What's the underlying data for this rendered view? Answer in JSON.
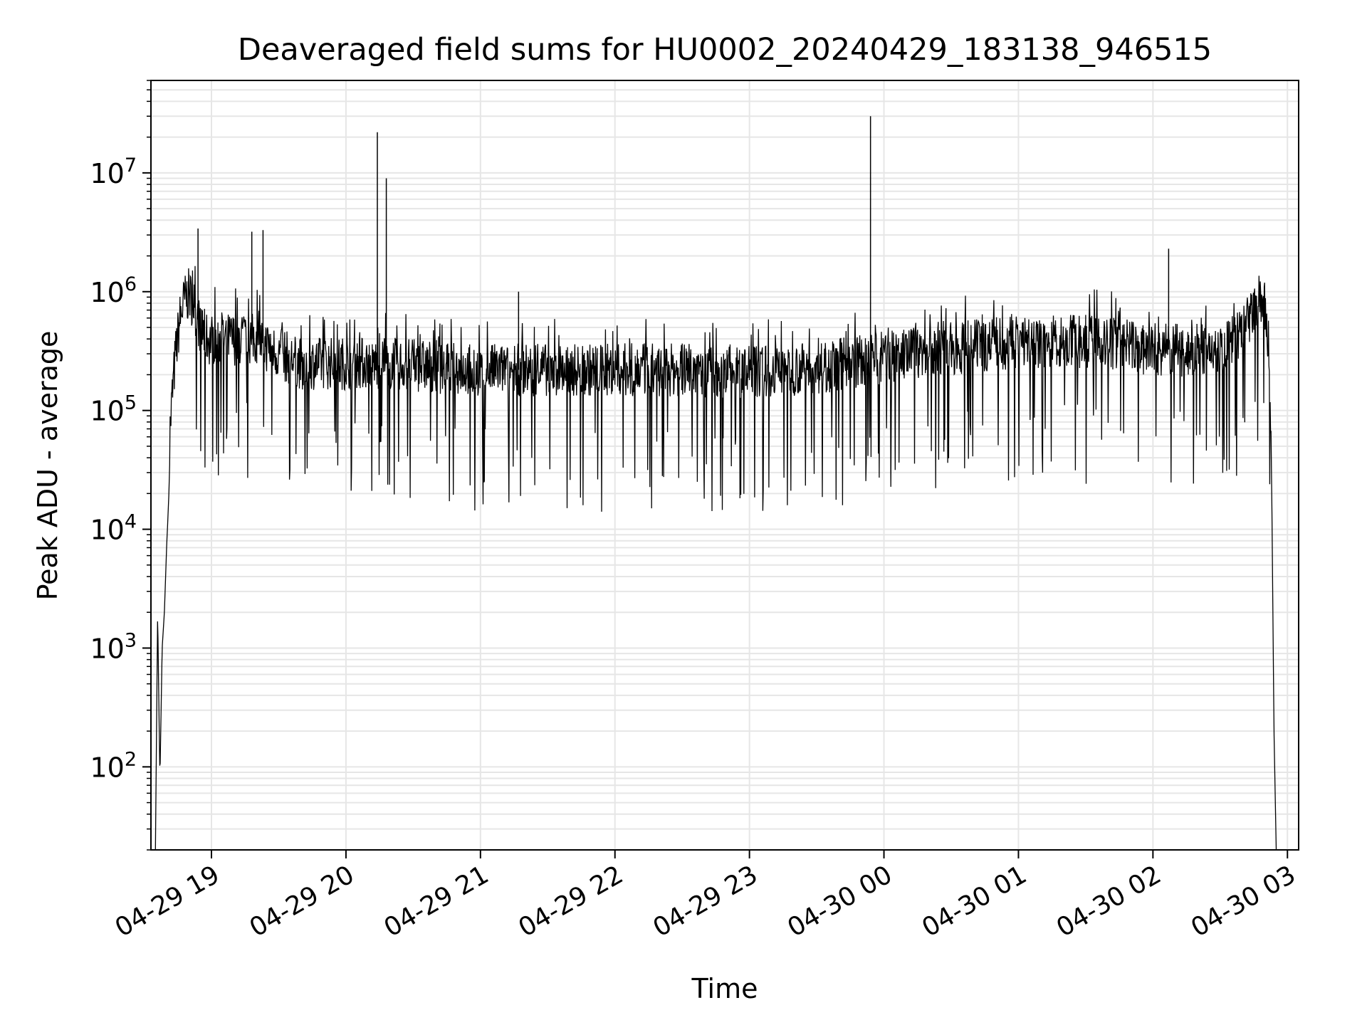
{
  "chart_data": {
    "type": "line",
    "title": "Deaveraged field sums for HU0002_20240429_183138_946515",
    "xlabel": "Time",
    "ylabel": "Peak ADU - average",
    "yscale": "log",
    "ylim": [
      20,
      60000000
    ],
    "xlim": [
      "2024-04-29 18:33",
      "2024-04-30 03:05"
    ],
    "grid": true,
    "line_color": "#000000",
    "grid_color": "#e6e6e6",
    "x_ticks": [
      {
        "value": "2024-04-29 19:00",
        "label": "04-29 19"
      },
      {
        "value": "2024-04-29 20:00",
        "label": "04-29 20"
      },
      {
        "value": "2024-04-29 21:00",
        "label": "04-29 21"
      },
      {
        "value": "2024-04-29 22:00",
        "label": "04-29 22"
      },
      {
        "value": "2024-04-29 23:00",
        "label": "04-29 23"
      },
      {
        "value": "2024-04-30 00:00",
        "label": "04-30 00"
      },
      {
        "value": "2024-04-30 01:00",
        "label": "04-30 01"
      },
      {
        "value": "2024-04-30 02:00",
        "label": "04-30 02"
      },
      {
        "value": "2024-04-30 03:00",
        "label": "04-30 03"
      }
    ],
    "y_ticks": [
      {
        "value": 100,
        "base": "10",
        "exp": "2"
      },
      {
        "value": 1000,
        "base": "10",
        "exp": "3"
      },
      {
        "value": 10000,
        "base": "10",
        "exp": "4"
      },
      {
        "value": 100000,
        "base": "10",
        "exp": "5"
      },
      {
        "value": 1000000,
        "base": "10",
        "exp": "6"
      },
      {
        "value": 10000000,
        "base": "10",
        "exp": "7"
      }
    ],
    "series": [
      {
        "x": [
          "2024-04-29 18:35",
          "2024-04-29 18:36",
          "2024-04-29 18:37",
          "2024-04-29 18:38",
          "2024-04-29 18:39",
          "2024-04-29 18:40",
          "2024-04-29 18:41",
          "2024-04-29 18:42",
          "2024-04-29 18:44",
          "2024-04-29 18:46",
          "2024-04-29 18:48",
          "2024-04-29 18:50",
          "2024-04-29 18:52",
          "2024-04-29 18:55",
          "2024-04-29 18:58",
          "2024-04-29 19:00",
          "2024-04-29 19:10",
          "2024-04-29 19:20",
          "2024-04-29 19:30",
          "2024-04-29 19:40",
          "2024-04-29 19:50",
          "2024-04-29 20:00",
          "2024-04-29 20:15",
          "2024-04-29 20:30",
          "2024-04-29 21:00",
          "2024-04-29 21:30",
          "2024-04-29 22:00",
          "2024-04-29 22:30",
          "2024-04-29 23:00",
          "2024-04-29 23:30",
          "2024-04-30 00:00",
          "2024-04-30 00:30",
          "2024-04-30 01:00",
          "2024-04-30 01:30",
          "2024-04-30 02:00",
          "2024-04-30 02:15",
          "2024-04-30 02:30",
          "2024-04-30 02:40",
          "2024-04-30 02:45",
          "2024-04-30 02:48",
          "2024-04-30 02:50",
          "2024-04-30 02:52",
          "2024-04-30 02:53",
          "2024-04-30 02:54",
          "2024-04-30 02:55"
        ],
        "y": [
          20,
          2000,
          80,
          1000,
          2000,
          7000,
          20000,
          100000,
          300000,
          600000,
          850000,
          950000,
          800000,
          500000,
          400000,
          400000,
          400000,
          400000,
          300000,
          250000,
          250000,
          250000,
          250000,
          240000,
          220000,
          220000,
          220000,
          220000,
          210000,
          230000,
          280000,
          330000,
          380000,
          380000,
          330000,
          320000,
          330000,
          450000,
          700000,
          900000,
          700000,
          300000,
          20000,
          200,
          20
        ]
      }
    ],
    "spikes": [
      {
        "x": "2024-04-29 18:54",
        "y": 3400000
      },
      {
        "x": "2024-04-29 19:18",
        "y": 3200000
      },
      {
        "x": "2024-04-29 19:23",
        "y": 3300000
      },
      {
        "x": "2024-04-29 20:14",
        "y": 22000000
      },
      {
        "x": "2024-04-29 20:18",
        "y": 9000000
      },
      {
        "x": "2024-04-29 21:17",
        "y": 1000000
      },
      {
        "x": "2024-04-29 23:54",
        "y": 30000000
      },
      {
        "x": "2024-04-30 02:07",
        "y": 2300000
      }
    ]
  }
}
